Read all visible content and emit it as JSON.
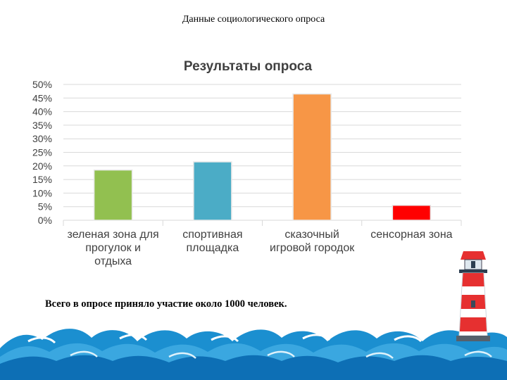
{
  "slide": {
    "title": "Данные социологического опроса",
    "footer": "Всего в опросе приняло участие около 1000 человек."
  },
  "chart_data": {
    "type": "bar",
    "title": "Результаты опроса",
    "categories": [
      [
        "зеленая зона для",
        "прогулок и",
        "отдыха"
      ],
      [
        "спортивная",
        "площадка"
      ],
      [
        "сказочный",
        "игровой городок"
      ],
      [
        "сенсорная зона"
      ]
    ],
    "values": [
      18.5,
      21.5,
      46.5,
      5.5
    ],
    "colors": [
      "#92c050",
      "#4bacc6",
      "#f79646",
      "#ff0000"
    ],
    "ylim": [
      0,
      50
    ],
    "yticks": [
      "0%",
      "5%",
      "10%",
      "15%",
      "20%",
      "25%",
      "30%",
      "35%",
      "40%",
      "45%",
      "50%"
    ],
    "grid": true,
    "legend": "none"
  }
}
